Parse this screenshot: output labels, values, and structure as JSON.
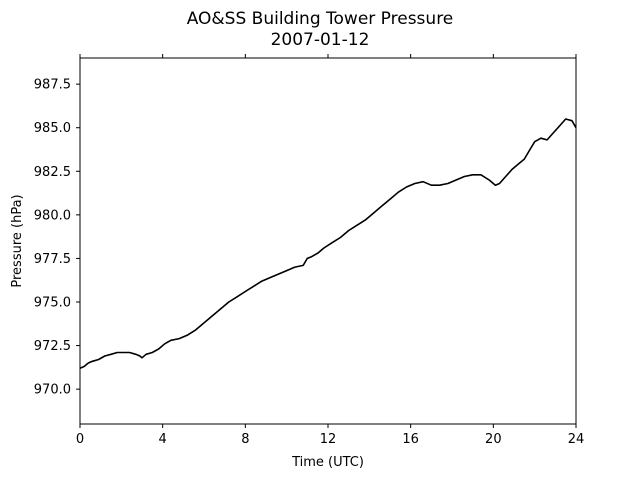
{
  "chart_data": {
    "type": "line",
    "title": "AO&SS Building Tower Pressure",
    "subtitle": "2007-01-12",
    "xlabel": "Time (UTC)",
    "ylabel": "Pressure (hPa)",
    "xlim": [
      0,
      24
    ],
    "ylim": [
      968.0,
      989.0
    ],
    "x_ticks": [
      0,
      4,
      8,
      12,
      16,
      20,
      24
    ],
    "x_tick_labels": [
      "0",
      "4",
      "8",
      "12",
      "16",
      "20",
      "24"
    ],
    "y_ticks": [
      970.0,
      972.5,
      975.0,
      977.5,
      980.0,
      982.5,
      985.0,
      987.5
    ],
    "y_tick_labels": [
      "970.0",
      "972.5",
      "975.0",
      "977.5",
      "980.0",
      "982.5",
      "985.0",
      "987.5"
    ],
    "grid": false,
    "line_color": "#000000",
    "series": [
      {
        "x": [
          0.0,
          0.2,
          0.4,
          0.6,
          0.9,
          1.2,
          1.5,
          1.8,
          2.1,
          2.4,
          2.7,
          2.9,
          3.0,
          3.2,
          3.5,
          3.8,
          4.1,
          4.4,
          4.8,
          5.2,
          5.6,
          6.0,
          6.4,
          6.8,
          7.2,
          7.6,
          8.0,
          8.4,
          8.8,
          9.2,
          9.6,
          10.0,
          10.4,
          10.8,
          11.0,
          11.2,
          11.5,
          11.8,
          12.2,
          12.6,
          13.0,
          13.4,
          13.8,
          14.2,
          14.6,
          15.0,
          15.4,
          15.8,
          16.2,
          16.6,
          17.0,
          17.4,
          17.8,
          18.2,
          18.6,
          19.0,
          19.4,
          19.8,
          20.1,
          20.3,
          20.6,
          20.9,
          21.2,
          21.5,
          21.8,
          22.0,
          22.3,
          22.6,
          22.9,
          23.2,
          23.5,
          23.8,
          24.0
        ],
        "y": [
          971.2,
          971.3,
          971.5,
          971.6,
          971.7,
          971.9,
          972.0,
          972.1,
          972.1,
          972.1,
          972.0,
          971.9,
          971.8,
          972.0,
          972.1,
          972.3,
          972.6,
          972.8,
          972.9,
          973.1,
          973.4,
          973.8,
          974.2,
          974.6,
          975.0,
          975.3,
          975.6,
          975.9,
          976.2,
          976.4,
          976.6,
          976.8,
          977.0,
          977.1,
          977.5,
          977.6,
          977.8,
          978.1,
          978.4,
          978.7,
          979.1,
          979.4,
          979.7,
          980.1,
          980.5,
          980.9,
          981.3,
          981.6,
          981.8,
          981.9,
          981.7,
          981.7,
          981.8,
          982.0,
          982.2,
          982.3,
          982.3,
          982.0,
          981.7,
          981.8,
          982.2,
          982.6,
          982.9,
          983.2,
          983.8,
          984.2,
          984.4,
          984.3,
          984.7,
          985.1,
          985.5,
          985.4,
          985.0
        ]
      }
    ]
  }
}
